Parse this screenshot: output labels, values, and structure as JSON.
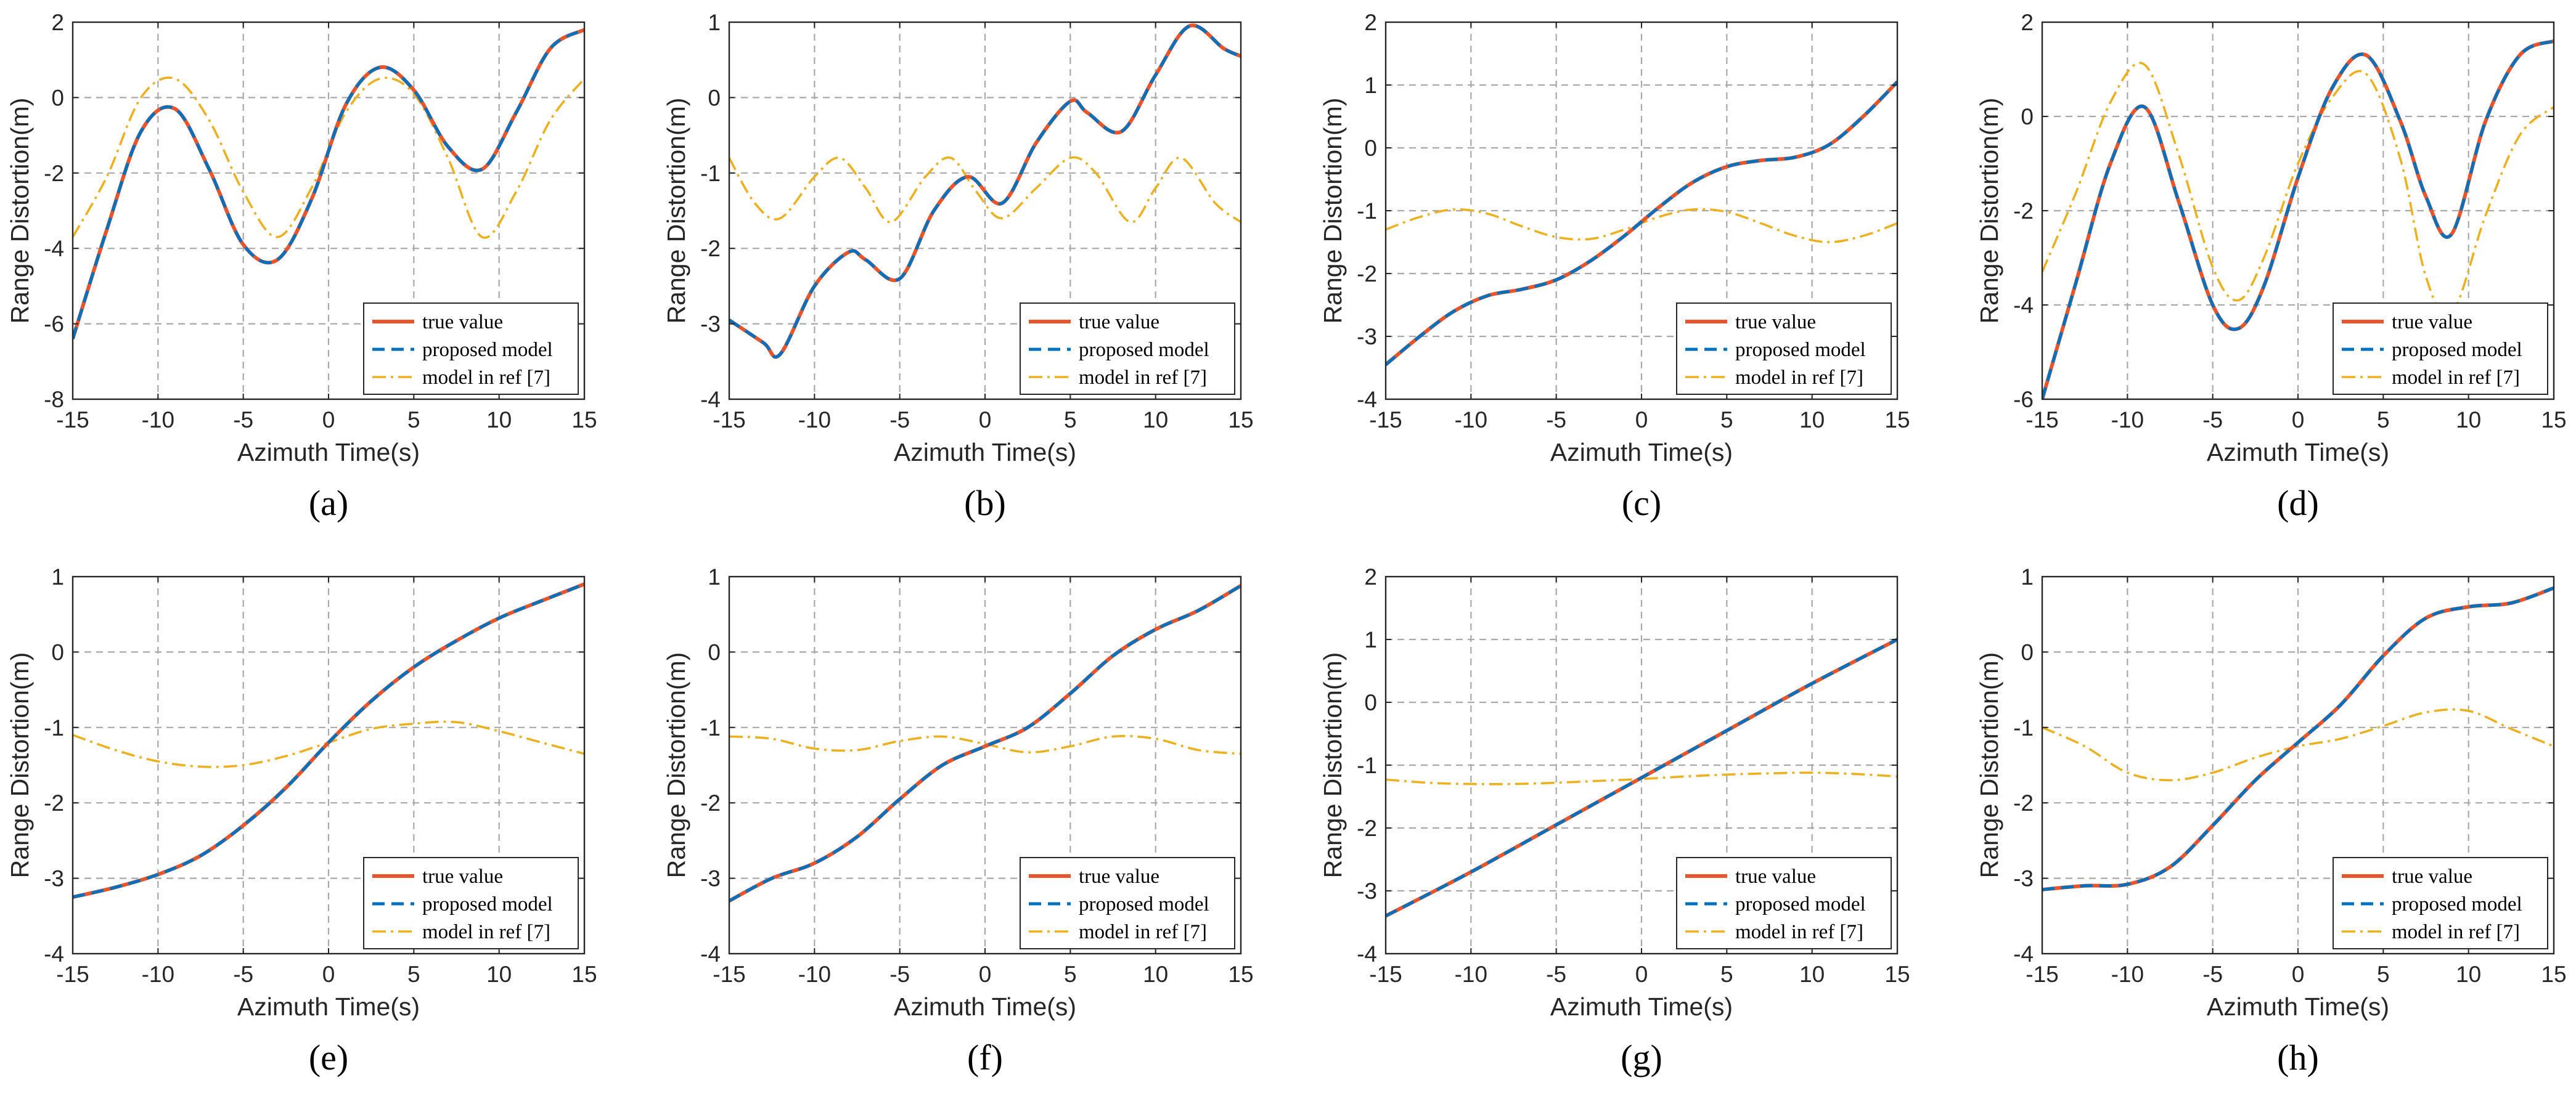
{
  "figure": {
    "xlabel": "Azimuth Time(s)",
    "ylabel": "Range Distortion(m)",
    "legend": [
      "true value",
      "proposed model",
      "model in ref [7]"
    ],
    "colors": {
      "true": "#e8552d",
      "proposed": "#0072bd",
      "ref": "#edb120",
      "grid": "#a9a9a9",
      "axis": "#262626"
    }
  },
  "chart_data": [
    {
      "id": "a",
      "label": "(a)",
      "type": "line",
      "xlim": [
        -15,
        15
      ],
      "ylim": [
        -8,
        2
      ],
      "xticks": [
        -15,
        -10,
        -5,
        0,
        5,
        10,
        15
      ],
      "yticks": [
        -8,
        -6,
        -4,
        -2,
        0,
        2
      ],
      "series": [
        {
          "name": "true value",
          "x": [
            -15,
            -13,
            -11,
            -9,
            -7,
            -5,
            -3,
            -1,
            1,
            3,
            5,
            7,
            9,
            11,
            13,
            15
          ],
          "values": [
            -6.4,
            -3.5,
            -0.9,
            -0.3,
            -1.9,
            -3.9,
            -4.3,
            -2.7,
            -0.2,
            0.8,
            0.2,
            -1.3,
            -1.9,
            -0.4,
            1.3,
            1.8
          ]
        },
        {
          "name": "proposed model",
          "x": [
            -15,
            -13,
            -11,
            -9,
            -7,
            -5,
            -3,
            -1,
            1,
            3,
            5,
            7,
            9,
            11,
            13,
            15
          ],
          "values": [
            -6.4,
            -3.5,
            -0.9,
            -0.3,
            -1.9,
            -3.9,
            -4.3,
            -2.7,
            -0.2,
            0.8,
            0.2,
            -1.3,
            -1.9,
            -0.4,
            1.3,
            1.8
          ]
        },
        {
          "name": "model in ref [7]",
          "x": [
            -15,
            -13,
            -11,
            -9,
            -7,
            -5,
            -3,
            -1,
            1,
            3,
            5,
            7,
            9,
            11,
            13,
            15
          ],
          "values": [
            -3.7,
            -2.1,
            0.0,
            0.5,
            -0.6,
            -2.5,
            -3.7,
            -2.4,
            -0.4,
            0.5,
            0.1,
            -1.6,
            -3.7,
            -2.5,
            -0.6,
            0.5
          ]
        }
      ]
    },
    {
      "id": "b",
      "label": "(b)",
      "type": "line",
      "xlim": [
        -15,
        15
      ],
      "ylim": [
        -4,
        1
      ],
      "xticks": [
        -15,
        -10,
        -5,
        0,
        5,
        10,
        15
      ],
      "yticks": [
        -4,
        -3,
        -2,
        -1,
        0,
        1
      ],
      "series": [
        {
          "name": "true value",
          "x": [
            -15,
            -13,
            -12,
            -10,
            -8,
            -7,
            -5,
            -3,
            -1,
            1,
            3,
            5,
            6,
            8,
            10,
            12,
            14,
            15
          ],
          "values": [
            -2.95,
            -3.25,
            -3.4,
            -2.5,
            -2.05,
            -2.15,
            -2.4,
            -1.5,
            -1.05,
            -1.4,
            -0.6,
            -0.05,
            -0.2,
            -0.45,
            0.3,
            0.95,
            0.65,
            0.55
          ]
        },
        {
          "name": "proposed model",
          "x": [
            -15,
            -13,
            -12,
            -10,
            -8,
            -7,
            -5,
            -3,
            -1,
            1,
            3,
            5,
            6,
            8,
            10,
            12,
            14,
            15
          ],
          "values": [
            -2.95,
            -3.25,
            -3.4,
            -2.5,
            -2.05,
            -2.15,
            -2.4,
            -1.5,
            -1.05,
            -1.4,
            -0.6,
            -0.05,
            -0.2,
            -0.45,
            0.3,
            0.95,
            0.65,
            0.55
          ]
        },
        {
          "name": "model in ref [7]",
          "x": [
            -15,
            -13.5,
            -12,
            -10,
            -8.5,
            -7,
            -5.5,
            -3.5,
            -2,
            -0.5,
            1,
            3,
            5,
            6.5,
            8.5,
            10,
            11.5,
            13.5,
            15
          ],
          "values": [
            -0.8,
            -1.4,
            -1.6,
            -1.05,
            -0.8,
            -1.2,
            -1.65,
            -1.05,
            -0.8,
            -1.25,
            -1.6,
            -1.2,
            -0.8,
            -1.0,
            -1.65,
            -1.2,
            -0.8,
            -1.4,
            -1.65
          ]
        }
      ]
    },
    {
      "id": "c",
      "label": "(c)",
      "type": "line",
      "xlim": [
        -15,
        15
      ],
      "ylim": [
        -4,
        2
      ],
      "xticks": [
        -15,
        -10,
        -5,
        0,
        5,
        10,
        15
      ],
      "yticks": [
        -4,
        -3,
        -2,
        -1,
        0,
        1,
        2
      ],
      "series": [
        {
          "name": "true value",
          "x": [
            -15,
            -13,
            -11,
            -9,
            -7,
            -5,
            -3,
            -1,
            1,
            3,
            5,
            7,
            9,
            11,
            13,
            15
          ],
          "values": [
            -3.45,
            -3.0,
            -2.6,
            -2.35,
            -2.25,
            -2.1,
            -1.8,
            -1.4,
            -0.95,
            -0.55,
            -0.3,
            -0.2,
            -0.15,
            0.05,
            0.5,
            1.05
          ]
        },
        {
          "name": "proposed model",
          "x": [
            -15,
            -13,
            -11,
            -9,
            -7,
            -5,
            -3,
            -1,
            1,
            3,
            5,
            7,
            9,
            11,
            13,
            15
          ],
          "values": [
            -3.45,
            -3.0,
            -2.6,
            -2.35,
            -2.25,
            -2.1,
            -1.8,
            -1.4,
            -0.95,
            -0.55,
            -0.3,
            -0.2,
            -0.15,
            0.05,
            0.5,
            1.05
          ]
        },
        {
          "name": "model in ref [7]",
          "x": [
            -15,
            -13,
            -11,
            -9,
            -7,
            -5,
            -3,
            -1,
            1,
            3,
            5,
            7,
            9,
            11,
            13,
            15
          ],
          "values": [
            -1.3,
            -1.1,
            -0.98,
            -1.05,
            -1.25,
            -1.42,
            -1.45,
            -1.3,
            -1.1,
            -0.98,
            -1.02,
            -1.2,
            -1.4,
            -1.5,
            -1.4,
            -1.2
          ]
        }
      ]
    },
    {
      "id": "d",
      "label": "(d)",
      "type": "line",
      "xlim": [
        -15,
        15
      ],
      "ylim": [
        -6,
        2
      ],
      "xticks": [
        -15,
        -10,
        -5,
        0,
        5,
        10,
        15
      ],
      "yticks": [
        -6,
        -4,
        -2,
        0,
        2
      ],
      "series": [
        {
          "name": "true value",
          "x": [
            -15,
            -13,
            -11,
            -9,
            -7,
            -5,
            -3.5,
            -2,
            0,
            2,
            4,
            6,
            7.5,
            9,
            11,
            13,
            15
          ],
          "values": [
            -6.0,
            -3.5,
            -1.0,
            0.2,
            -1.8,
            -4.0,
            -4.5,
            -3.6,
            -1.3,
            0.6,
            1.3,
            -0.1,
            -1.7,
            -2.5,
            -0.1,
            1.3,
            1.6
          ]
        },
        {
          "name": "proposed model",
          "x": [
            -15,
            -13,
            -11,
            -9,
            -7,
            -5,
            -3.5,
            -2,
            0,
            2,
            4,
            6,
            7.5,
            9,
            11,
            13,
            15
          ],
          "values": [
            -6.0,
            -3.5,
            -1.0,
            0.2,
            -1.8,
            -4.0,
            -4.5,
            -3.6,
            -1.3,
            0.6,
            1.3,
            -0.1,
            -1.7,
            -2.5,
            -0.1,
            1.3,
            1.6
          ]
        },
        {
          "name": "model in ref [7]",
          "x": [
            -15,
            -13,
            -11,
            -9,
            -7,
            -5,
            -3.5,
            -2,
            0,
            2,
            4,
            6,
            7.5,
            9,
            11,
            13,
            15
          ],
          "values": [
            -3.3,
            -1.6,
            0.3,
            1.1,
            -0.8,
            -3.2,
            -3.9,
            -3.0,
            -1.0,
            0.4,
            0.9,
            -0.9,
            -3.4,
            -4.2,
            -2.1,
            -0.4,
            0.2
          ]
        }
      ]
    },
    {
      "id": "e",
      "label": "(e)",
      "type": "line",
      "xlim": [
        -15,
        15
      ],
      "ylim": [
        -4,
        1
      ],
      "xticks": [
        -15,
        -10,
        -5,
        0,
        5,
        10,
        15
      ],
      "yticks": [
        -4,
        -3,
        -2,
        -1,
        0,
        1
      ],
      "series": [
        {
          "name": "true value",
          "x": [
            -15,
            -12.5,
            -10,
            -7.5,
            -5,
            -2.5,
            0,
            2.5,
            5,
            7.5,
            10,
            12.5,
            15
          ],
          "values": [
            -3.25,
            -3.12,
            -2.95,
            -2.7,
            -2.3,
            -1.8,
            -1.2,
            -0.65,
            -0.2,
            0.15,
            0.45,
            0.68,
            0.9
          ]
        },
        {
          "name": "proposed model",
          "x": [
            -15,
            -12.5,
            -10,
            -7.5,
            -5,
            -2.5,
            0,
            2.5,
            5,
            7.5,
            10,
            12.5,
            15
          ],
          "values": [
            -3.25,
            -3.12,
            -2.95,
            -2.7,
            -2.3,
            -1.8,
            -1.2,
            -0.65,
            -0.2,
            0.15,
            0.45,
            0.68,
            0.9
          ]
        },
        {
          "name": "model in ref [7]",
          "x": [
            -15,
            -12.5,
            -10,
            -7.5,
            -5,
            -2.5,
            0,
            2.5,
            5,
            7.5,
            10,
            12.5,
            15
          ],
          "values": [
            -1.1,
            -1.3,
            -1.45,
            -1.52,
            -1.5,
            -1.38,
            -1.2,
            -1.02,
            -0.95,
            -0.93,
            -1.05,
            -1.2,
            -1.35
          ]
        }
      ]
    },
    {
      "id": "f",
      "label": "(f)",
      "type": "line",
      "xlim": [
        -15,
        15
      ],
      "ylim": [
        -4,
        1
      ],
      "xticks": [
        -15,
        -10,
        -5,
        0,
        5,
        10,
        15
      ],
      "yticks": [
        -4,
        -3,
        -2,
        -1,
        0,
        1
      ],
      "series": [
        {
          "name": "true value",
          "x": [
            -15,
            -12.5,
            -10,
            -7.5,
            -5,
            -2.5,
            0,
            2.5,
            5,
            7.5,
            10,
            12.5,
            15
          ],
          "values": [
            -3.3,
            -3.0,
            -2.8,
            -2.45,
            -1.95,
            -1.5,
            -1.25,
            -1.0,
            -0.55,
            -0.05,
            0.3,
            0.55,
            0.88
          ]
        },
        {
          "name": "proposed model",
          "x": [
            -15,
            -12.5,
            -10,
            -7.5,
            -5,
            -2.5,
            0,
            2.5,
            5,
            7.5,
            10,
            12.5,
            15
          ],
          "values": [
            -3.3,
            -3.0,
            -2.8,
            -2.45,
            -1.95,
            -1.5,
            -1.25,
            -1.0,
            -0.55,
            -0.05,
            0.3,
            0.55,
            0.88
          ]
        },
        {
          "name": "model in ref [7]",
          "x": [
            -15,
            -12.5,
            -10,
            -7.5,
            -5,
            -2.5,
            0,
            2.5,
            5,
            7.5,
            10,
            12.5,
            15
          ],
          "values": [
            -1.12,
            -1.15,
            -1.28,
            -1.3,
            -1.18,
            -1.12,
            -1.22,
            -1.33,
            -1.25,
            -1.12,
            -1.15,
            -1.3,
            -1.35
          ]
        }
      ]
    },
    {
      "id": "g",
      "label": "(g)",
      "type": "line",
      "xlim": [
        -15,
        15
      ],
      "ylim": [
        -4,
        2
      ],
      "xticks": [
        -15,
        -10,
        -5,
        0,
        5,
        10,
        15
      ],
      "yticks": [
        -4,
        -3,
        -2,
        -1,
        0,
        1,
        2
      ],
      "series": [
        {
          "name": "true value",
          "x": [
            -15,
            -10,
            -5,
            0,
            5,
            10,
            15
          ],
          "values": [
            -3.4,
            -2.7,
            -1.95,
            -1.2,
            -0.45,
            0.3,
            1.0
          ]
        },
        {
          "name": "proposed model",
          "x": [
            -15,
            -10,
            -5,
            0,
            5,
            10,
            15
          ],
          "values": [
            -3.4,
            -2.7,
            -1.95,
            -1.2,
            -0.45,
            0.3,
            1.0
          ]
        },
        {
          "name": "model in ref [7]",
          "x": [
            -15,
            -12.5,
            -10,
            -7.5,
            -5,
            -2.5,
            0,
            2.5,
            5,
            7.5,
            10,
            12.5,
            15
          ],
          "values": [
            -1.23,
            -1.28,
            -1.3,
            -1.3,
            -1.28,
            -1.25,
            -1.22,
            -1.18,
            -1.15,
            -1.13,
            -1.12,
            -1.14,
            -1.18
          ]
        }
      ]
    },
    {
      "id": "h",
      "label": "(h)",
      "type": "line",
      "xlim": [
        -15,
        15
      ],
      "ylim": [
        -4,
        1
      ],
      "xticks": [
        -15,
        -10,
        -5,
        0,
        5,
        10,
        15
      ],
      "yticks": [
        -4,
        -3,
        -2,
        -1,
        0,
        1
      ],
      "series": [
        {
          "name": "true value",
          "x": [
            -15,
            -12.5,
            -10,
            -7.5,
            -5,
            -2.5,
            0,
            2.5,
            5,
            7.5,
            10,
            12.5,
            15
          ],
          "values": [
            -3.15,
            -3.1,
            -3.08,
            -2.85,
            -2.3,
            -1.7,
            -1.2,
            -0.7,
            -0.05,
            0.45,
            0.6,
            0.65,
            0.85
          ]
        },
        {
          "name": "proposed model",
          "x": [
            -15,
            -12.5,
            -10,
            -7.5,
            -5,
            -2.5,
            0,
            2.5,
            5,
            7.5,
            10,
            12.5,
            15
          ],
          "values": [
            -3.15,
            -3.1,
            -3.08,
            -2.85,
            -2.3,
            -1.7,
            -1.2,
            -0.7,
            -0.05,
            0.45,
            0.6,
            0.65,
            0.85
          ]
        },
        {
          "name": "model in ref [7]",
          "x": [
            -15,
            -12.5,
            -10,
            -7.5,
            -5,
            -2.5,
            0,
            2.5,
            5,
            7.5,
            10,
            12.5,
            15
          ],
          "values": [
            -1.0,
            -1.25,
            -1.6,
            -1.7,
            -1.6,
            -1.4,
            -1.25,
            -1.15,
            -0.98,
            -0.8,
            -0.78,
            -1.02,
            -1.25
          ]
        }
      ]
    }
  ]
}
